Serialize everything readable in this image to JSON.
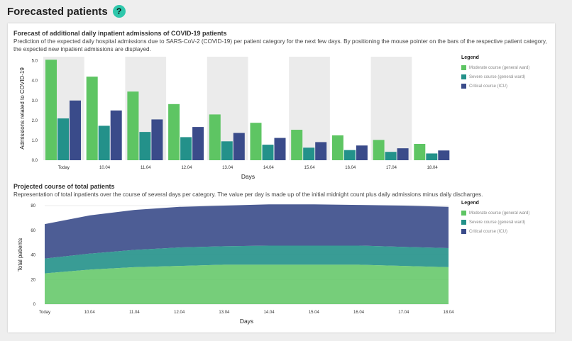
{
  "page": {
    "title": "Forecasted patients",
    "help_icon_label": "?"
  },
  "colors": {
    "moderate": "#5ec563",
    "severe": "#23918a",
    "critical": "#3a4b8a"
  },
  "legend": {
    "title": "Legend",
    "items": [
      {
        "label": "Moderate course (general ward)",
        "color": "#5ec563"
      },
      {
        "label": "Severe course (general ward)",
        "color": "#23918a"
      },
      {
        "label": "Critical course (ICU)",
        "color": "#3a4b8a"
      }
    ]
  },
  "chart_data": [
    {
      "type": "bar",
      "title": "Forecast of additional daily inpatient admissions of COVID-19 patients",
      "subtitle": "Prediction of the expected daily hospital admissions due to SARS-CoV-2 (COVID-19) per patient category for the next few days. By positioning the mouse pointer on the bars of the respective patient category, the expected new inpatient admissions are displayed.",
      "xlabel": "Days",
      "ylabel": "Admissions related to COVID-19",
      "categories": [
        "Today",
        "10.04",
        "11.04",
        "12.04",
        "13.04",
        "14.04",
        "15.04",
        "16.04",
        "17.04",
        "18.04"
      ],
      "ylim": [
        0,
        5.2
      ],
      "yticks": [
        "0.0",
        "1.0",
        "2.0",
        "3.0",
        "4.0",
        "5.0"
      ],
      "legend_position": "right",
      "series": [
        {
          "name": "Moderate course (general ward)",
          "values": [
            5.05,
            4.2,
            3.45,
            2.82,
            2.3,
            1.88,
            1.53,
            1.25,
            1.02,
            0.82
          ]
        },
        {
          "name": "Severe course (general ward)",
          "values": [
            2.1,
            1.73,
            1.42,
            1.16,
            0.95,
            0.78,
            0.63,
            0.51,
            0.42,
            0.34
          ]
        },
        {
          "name": "Critical course (ICU)",
          "values": [
            3.0,
            2.5,
            2.05,
            1.67,
            1.37,
            1.12,
            0.91,
            0.74,
            0.6,
            0.49
          ]
        }
      ]
    },
    {
      "type": "area",
      "stacked": true,
      "title": "Projected course of total patients",
      "subtitle": "Representation of total inpatients over the course of several days per category. The value per day is made up of the initial midnight count plus daily admissions minus daily discharges.",
      "xlabel": "Days",
      "ylabel": "Total patients",
      "categories": [
        "Today",
        "10.04",
        "11.04",
        "12.04",
        "13.04",
        "14.04",
        "15.04",
        "16.04",
        "17.04",
        "18.04"
      ],
      "ylim": [
        0,
        80
      ],
      "yticks": [
        "0",
        "20",
        "40",
        "60",
        "80"
      ],
      "legend_position": "right",
      "series": [
        {
          "name": "Moderate course (general ward)",
          "values": [
            25,
            28,
            30,
            31,
            32,
            32,
            32,
            32,
            31,
            30
          ]
        },
        {
          "name": "Severe course (general ward)",
          "values": [
            12,
            13,
            14,
            15,
            15,
            15.5,
            15.5,
            15.5,
            15.5,
            15.5
          ]
        },
        {
          "name": "Critical course (ICU)",
          "values": [
            28,
            31,
            32.5,
            33,
            33,
            33.5,
            33.5,
            33,
            33.5,
            33.5
          ]
        }
      ]
    }
  ]
}
